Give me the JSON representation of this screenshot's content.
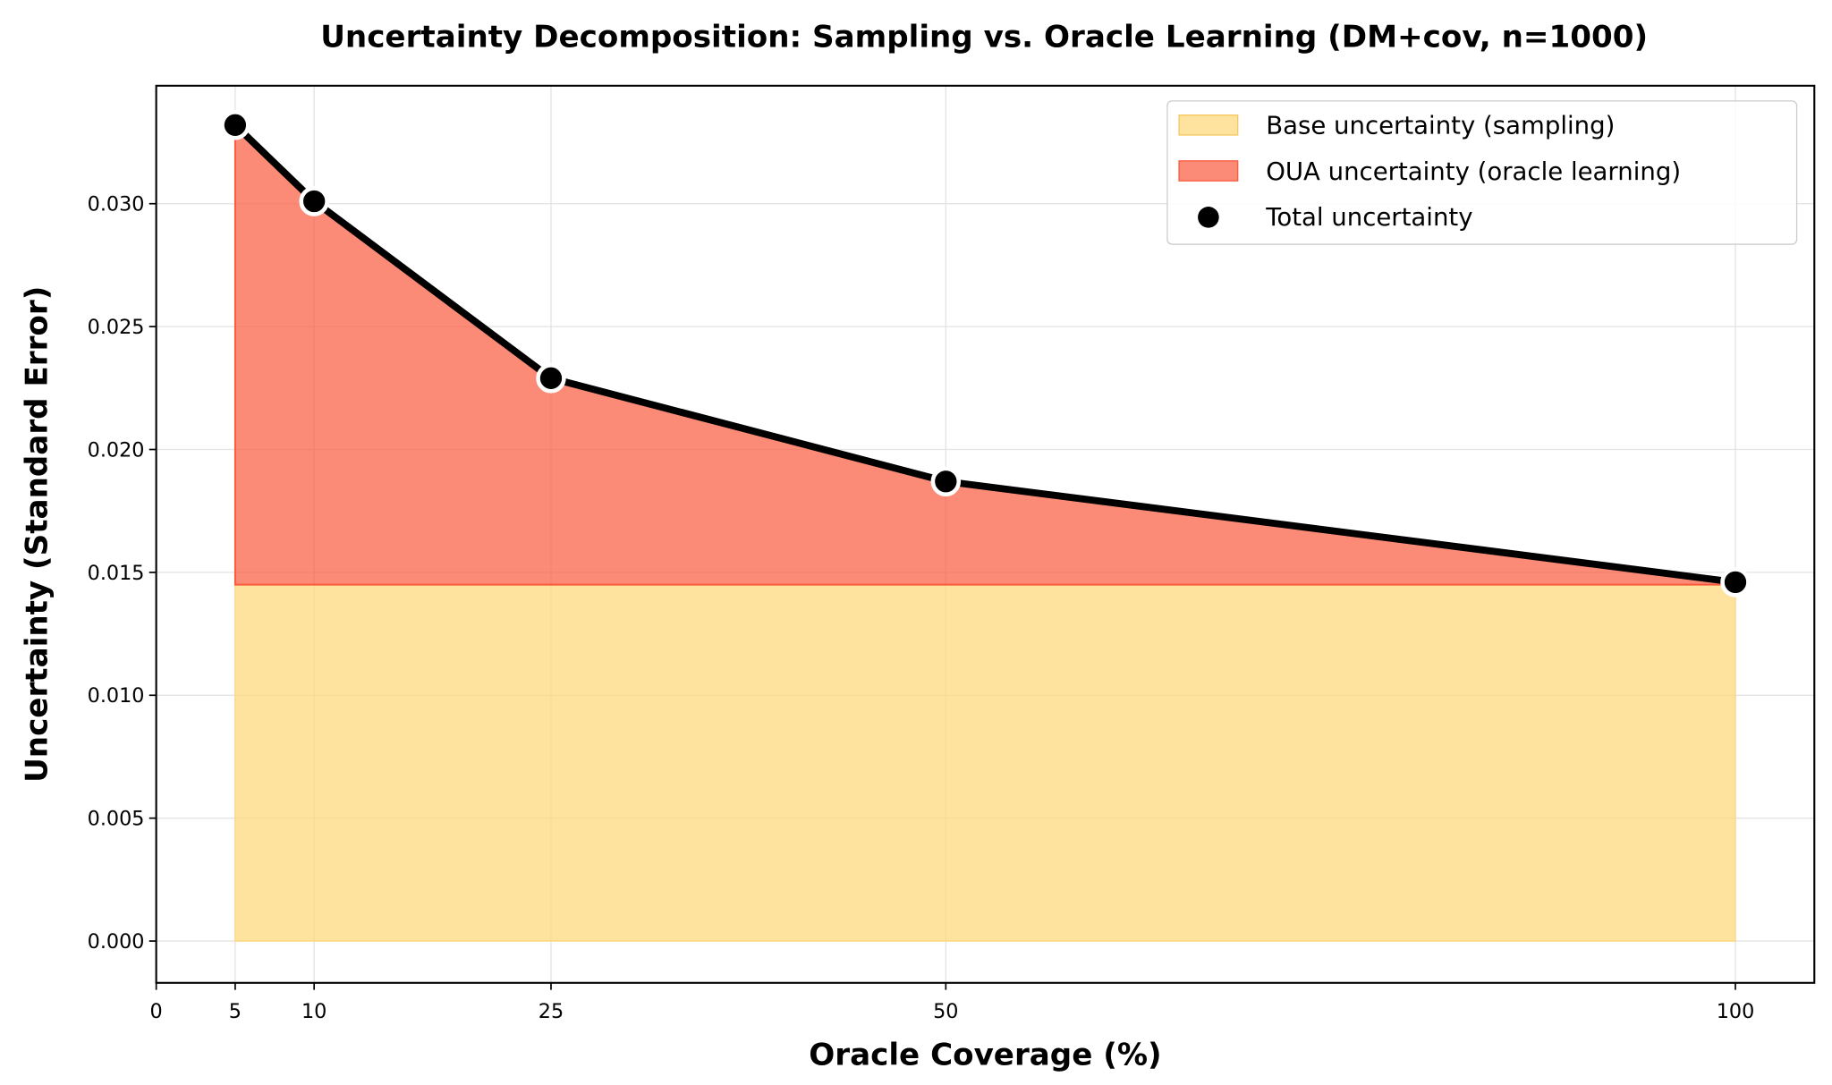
{
  "chart_data": {
    "type": "area",
    "title": "Uncertainty Decomposition: Sampling vs. Oracle Learning (DM+cov, n=1000)",
    "xlabel": "Oracle Coverage (%)",
    "ylabel": "Uncertainty (Standard Error)",
    "x": [
      5,
      10,
      25,
      50,
      100
    ],
    "series": [
      {
        "name": "Base uncertainty (sampling)",
        "kind": "stacked-area",
        "color": "#fdd97e",
        "values": [
          0.0145,
          0.0145,
          0.0145,
          0.0145,
          0.0145
        ]
      },
      {
        "name": "OUA uncertainty (oracle learning)",
        "kind": "stacked-area",
        "color": "#fa5a3c",
        "values": [
          0.0187,
          0.0156,
          0.0084,
          0.0042,
          0.0001
        ]
      },
      {
        "name": "Total uncertainty",
        "kind": "line+markers",
        "color": "#000000",
        "values": [
          0.0332,
          0.0301,
          0.0229,
          0.0187,
          0.0146
        ]
      }
    ],
    "xticks": [
      "0",
      "5",
      "10",
      "25",
      "50",
      "100"
    ],
    "xtick_values": [
      0,
      5,
      10,
      25,
      50,
      100
    ],
    "yticks": [
      "0.000",
      "0.005",
      "0.010",
      "0.015",
      "0.020",
      "0.025",
      "0.030"
    ],
    "ytick_values": [
      0,
      0.005,
      0.01,
      0.015,
      0.02,
      0.025,
      0.03
    ],
    "xlim": [
      0,
      105
    ],
    "ylim": [
      -0.0017,
      0.0348
    ],
    "grid": true,
    "legend": "top-right"
  }
}
